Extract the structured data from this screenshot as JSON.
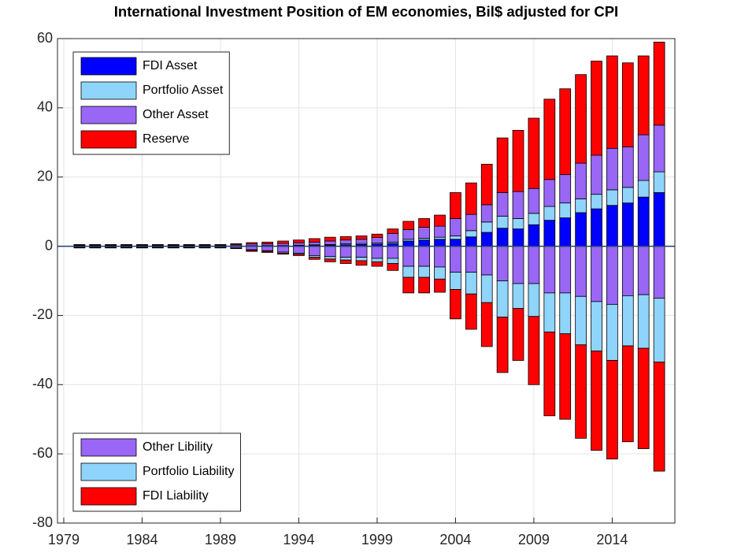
{
  "chart_data": {
    "type": "stacked-bar",
    "title": "International Investment Position of EM economies, Bil$ adjusted for CPI",
    "x": [
      1980,
      1981,
      1982,
      1983,
      1984,
      1985,
      1986,
      1987,
      1988,
      1989,
      1990,
      1991,
      1992,
      1993,
      1994,
      1995,
      1996,
      1997,
      1998,
      1999,
      2000,
      2001,
      2002,
      2003,
      2004,
      2005,
      2006,
      2007,
      2008,
      2009,
      2010,
      2011,
      2012,
      2013,
      2014,
      2015,
      2016,
      2017
    ],
    "xlim": [
      1978.6,
      2018
    ],
    "xticks": [
      1979,
      1984,
      1989,
      1994,
      1999,
      2004,
      2009,
      2014
    ],
    "ylim": [
      -80,
      60
    ],
    "yticks": [
      -80,
      -60,
      -40,
      -20,
      0,
      20,
      40,
      60
    ],
    "grid": true,
    "series": [
      {
        "name": "FDI Asset",
        "color": "#0000ff",
        "legend": "upper left",
        "values": [
          0.05,
          0.05,
          0.05,
          0.05,
          0.05,
          0.05,
          0.05,
          0.05,
          0.05,
          0.05,
          0.1,
          0.1,
          0.1,
          0.1,
          0.2,
          0.2,
          0.3,
          0.4,
          0.5,
          0.6,
          0.8,
          1.5,
          1.8,
          2,
          2,
          2.7,
          4,
          5.2,
          5,
          6.2,
          7.5,
          8.2,
          9.7,
          10.8,
          11.8,
          12.5,
          14.2,
          15.5
        ]
      },
      {
        "name": "Portfolio Asset",
        "color": "#8fd4fb",
        "legend": "upper left",
        "values": [
          0.05,
          0.05,
          0.05,
          0.05,
          0.05,
          0.05,
          0.05,
          0.05,
          0.05,
          0.05,
          0.05,
          0.05,
          0.1,
          0.1,
          0.1,
          0.2,
          0.2,
          0.3,
          0.3,
          0.3,
          0.4,
          0.5,
          0.5,
          0.6,
          1,
          1.8,
          3,
          3.5,
          3,
          3.3,
          4,
          4.3,
          4,
          4.2,
          4.5,
          4.5,
          4.8,
          6
        ]
      },
      {
        "name": "Other Asset",
        "color": "#9966f5",
        "legend": "upper left",
        "values": [
          0.2,
          0.2,
          0.2,
          0.2,
          0.2,
          0.2,
          0.2,
          0.2,
          0.2,
          0.2,
          0.3,
          0.5,
          0.5,
          0.6,
          0.7,
          0.8,
          1,
          1.1,
          1.2,
          1.6,
          2.5,
          2.8,
          3.2,
          3.2,
          5,
          4.7,
          5,
          6.8,
          7.8,
          7.2,
          7.8,
          8.2,
          10.3,
          11.3,
          12,
          11.7,
          13.2,
          13.5
        ]
      },
      {
        "name": "Reserve",
        "color": "#ff0000",
        "legend": "upper left",
        "values": [
          0.2,
          0.2,
          0.2,
          0.2,
          0.2,
          0.2,
          0.2,
          0.2,
          0.2,
          0.2,
          0.3,
          0.4,
          0.5,
          0.7,
          0.8,
          1,
          1.1,
          1,
          1,
          1,
          1.3,
          2.4,
          2.5,
          3.2,
          7.5,
          9.1,
          11.7,
          15.8,
          17.7,
          20.3,
          23.2,
          24.8,
          25.6,
          27.2,
          26.7,
          24.3,
          22.8,
          24
        ]
      },
      {
        "name": "Other Libility",
        "color": "#9966f5",
        "legend": "lower left",
        "values": [
          -0.3,
          -0.3,
          -0.3,
          -0.3,
          -0.3,
          -0.3,
          -0.3,
          -0.3,
          -0.3,
          -0.3,
          -0.5,
          -1,
          -1.3,
          -1.7,
          -2,
          -2.7,
          -3,
          -3.2,
          -3.2,
          -3.5,
          -3.5,
          -5.8,
          -5.8,
          -6,
          -7.5,
          -7.5,
          -8.3,
          -10,
          -10.8,
          -10.8,
          -13.5,
          -13.5,
          -14.5,
          -16,
          -16.8,
          -14.3,
          -14,
          -15
        ]
      },
      {
        "name": "Portfolio Liability",
        "color": "#8fd4fb",
        "legend": "lower left",
        "values": [
          -0.1,
          -0.1,
          -0.1,
          -0.1,
          -0.1,
          -0.1,
          -0.1,
          -0.1,
          -0.1,
          -0.1,
          -0.1,
          -0.2,
          -0.2,
          -0.3,
          -0.3,
          -0.5,
          -0.7,
          -0.8,
          -1,
          -1,
          -1.5,
          -3.2,
          -3.2,
          -3.5,
          -5,
          -6.3,
          -8,
          -10.5,
          -7.2,
          -9.5,
          -11.3,
          -11.8,
          -14,
          -14.3,
          -16.2,
          -14.5,
          -15.5,
          -18.5
        ]
      },
      {
        "name": "FDI Liability",
        "color": "#ff0000",
        "legend": "lower left",
        "values": [
          -0.1,
          -0.1,
          -0.1,
          -0.1,
          -0.1,
          -0.1,
          -0.1,
          -0.1,
          -0.1,
          -0.1,
          -0.1,
          -0.3,
          -0.3,
          -0.3,
          -0.4,
          -0.6,
          -0.8,
          -1,
          -1.3,
          -1.3,
          -2,
          -4.5,
          -4.5,
          -3.8,
          -8.5,
          -10.2,
          -12.7,
          -16,
          -15,
          -19.7,
          -24.2,
          -24.7,
          -27,
          -28.7,
          -28.5,
          -27.7,
          -29,
          -31.5
        ]
      }
    ]
  }
}
